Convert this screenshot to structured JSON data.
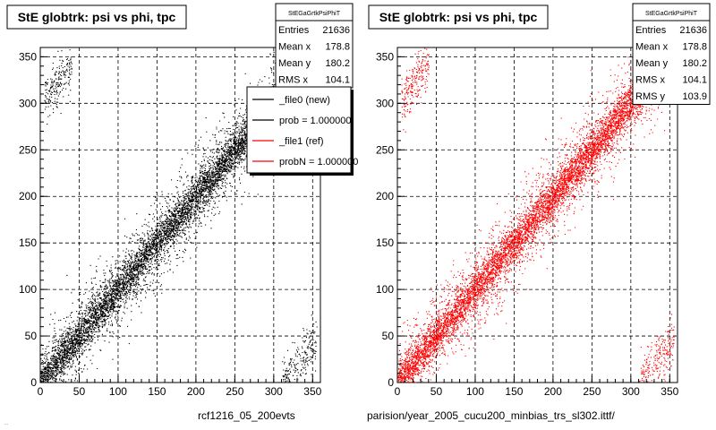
{
  "canvas": {
    "background": "#ffffff",
    "frame_color": "#000000"
  },
  "footer": {
    "left_filename": "rcf1216_05_200evts",
    "right_path": "parision/year_2005_cucu200_minbias_trs_sl302.ittf/",
    "bottom_left_tiny": "..."
  },
  "chart_data": [
    {
      "type": "scatter",
      "title": "StE globtrk: psi vs phi, tpc",
      "xlabel": "",
      "ylabel": "",
      "xlim": [
        0,
        360
      ],
      "ylim": [
        0,
        360
      ],
      "x_ticks": [
        0,
        50,
        100,
        150,
        200,
        250,
        300,
        350
      ],
      "y_ticks": [
        0,
        50,
        100,
        150,
        200,
        250,
        300,
        350
      ],
      "grid": true,
      "point_color": "#000000",
      "description": "dense diagonal band y≈x with wrap-around clusters near corners",
      "stats": {
        "name": "StEGaGrtkPsiPhiT",
        "rows": [
          {
            "label": "Entries",
            "value": "21636"
          },
          {
            "label": "Mean x",
            "value": "178.8"
          },
          {
            "label": "Mean y",
            "value": "180.2"
          },
          {
            "label": "RMS x",
            "value": "104.1"
          }
        ]
      },
      "legend": {
        "placement": "top-right",
        "entries": [
          {
            "label": "_file0 (new)",
            "color": "#000000"
          },
          {
            "label": "prob = 1.000000",
            "color": "#000000"
          },
          {
            "label": "_file1 (ref)",
            "color": "#ff0000"
          },
          {
            "label": "probN = 1.000000",
            "color": "#ff0000"
          }
        ]
      }
    },
    {
      "type": "scatter",
      "title": "StE globtrk: psi vs phi, tpc",
      "xlabel": "",
      "ylabel": "",
      "xlim": [
        0,
        360
      ],
      "ylim": [
        0,
        360
      ],
      "x_ticks": [
        0,
        50,
        100,
        150,
        200,
        250,
        300,
        350
      ],
      "y_ticks": [
        0,
        50,
        100,
        150,
        200,
        250,
        300,
        350
      ],
      "grid": true,
      "point_color": "#ff0000",
      "stats": {
        "name": "StEGaGrtkPsiPhiT",
        "rows": [
          {
            "label": "Entries",
            "value": "21636"
          },
          {
            "label": "Mean x",
            "value": "178.8"
          },
          {
            "label": "Mean y",
            "value": "180.2"
          },
          {
            "label": "RMS x",
            "value": "104.1"
          },
          {
            "label": "RMS y",
            "value": "103.9"
          }
        ]
      }
    }
  ]
}
